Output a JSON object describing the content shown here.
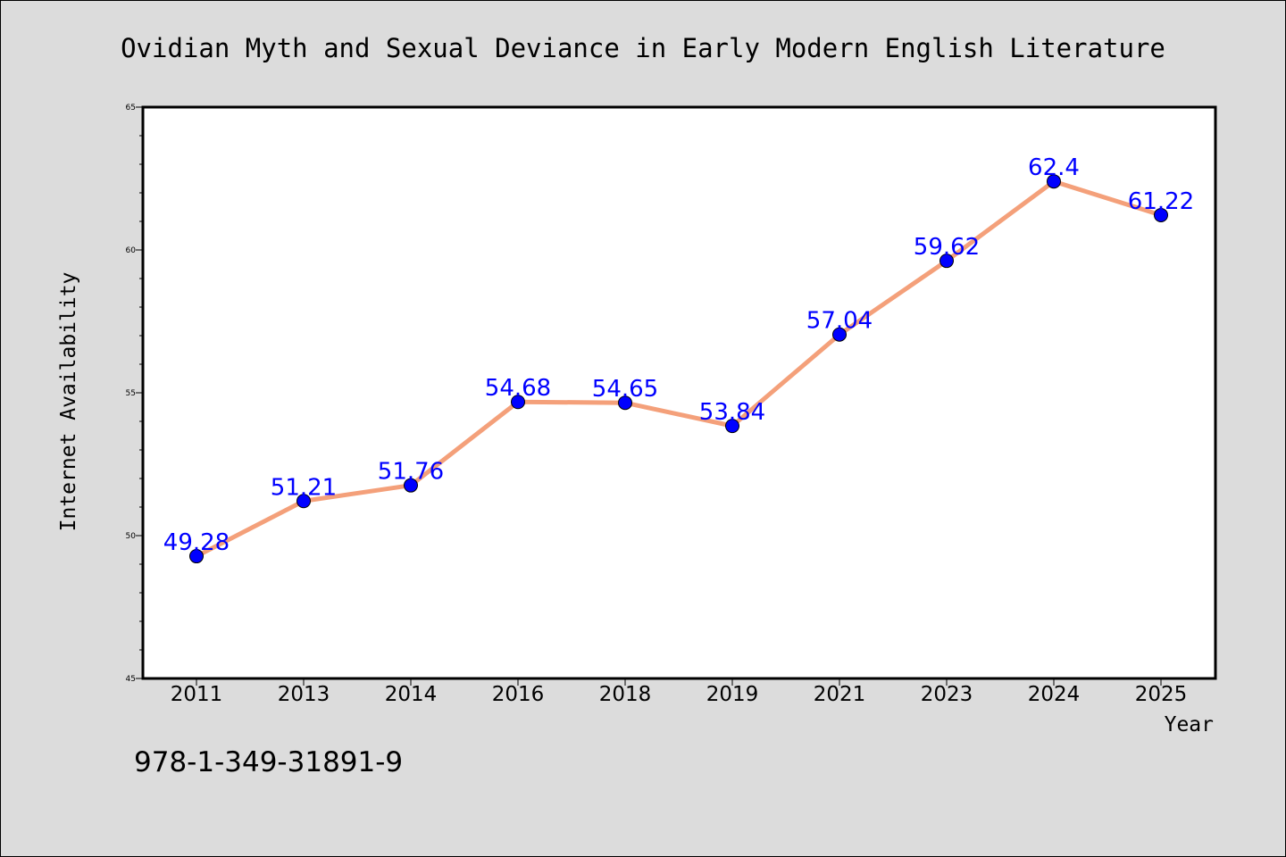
{
  "chart_data": {
    "type": "line",
    "title": "Ovidian Myth and Sexual Deviance in Early Modern English Literature",
    "xlabel": "Year",
    "ylabel": "Internet Availability",
    "categories": [
      "2011",
      "2013",
      "2014",
      "2016",
      "2018",
      "2019",
      "2021",
      "2023",
      "2024",
      "2025"
    ],
    "values": [
      49.28,
      51.21,
      51.76,
      54.68,
      54.65,
      53.84,
      57.04,
      59.62,
      62.4,
      61.22
    ],
    "value_labels": [
      "49.28",
      "51.21",
      "51.76",
      "54.68",
      "54.65",
      "53.84",
      "57.04",
      "59.62",
      "62.4",
      "61.22"
    ],
    "ylim": [
      45,
      65
    ],
    "yticks": [
      45,
      50,
      55,
      60,
      65
    ],
    "grid": false,
    "line_color": "#f4a07a",
    "marker_color": "#0000ff",
    "label_color": "#0000ff",
    "background_color": "#dcdcdc",
    "plot_background": "#ffffff"
  },
  "footer": {
    "isbn": "978-1-349-31891-9"
  }
}
